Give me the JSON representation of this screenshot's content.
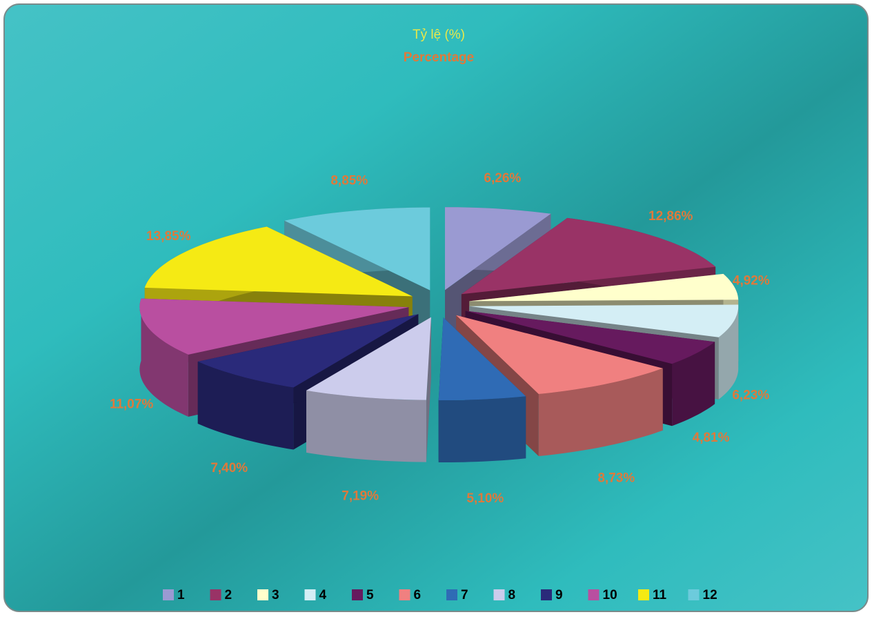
{
  "chart_data": {
    "type": "pie3d",
    "title": "Tỷ lệ (%)",
    "subtitle": "Percentage",
    "categories": [
      "1",
      "2",
      "3",
      "4",
      "5",
      "6",
      "7",
      "8",
      "9",
      "10",
      "11",
      "12"
    ],
    "values": [
      6.26,
      12.86,
      4.92,
      6.23,
      4.81,
      8.73,
      5.1,
      7.19,
      7.4,
      11.07,
      13.85,
      8.85
    ],
    "value_labels": [
      "6,26%",
      "12,86%",
      "4,92%",
      "6,23%",
      "4,81%",
      "8,73%",
      "5,10%",
      "7,19%",
      "7,40%",
      "11,07%",
      "13,85%",
      "8,85%"
    ],
    "colors": [
      "#9a9ad2",
      "#993366",
      "#ffffcc",
      "#d4eef5",
      "#661a5e",
      "#f08080",
      "#2f6bb5",
      "#ccccec",
      "#2a2a7a",
      "#b94fa0",
      "#f5ea14",
      "#6ccbdc"
    ],
    "legend": "bottom"
  }
}
